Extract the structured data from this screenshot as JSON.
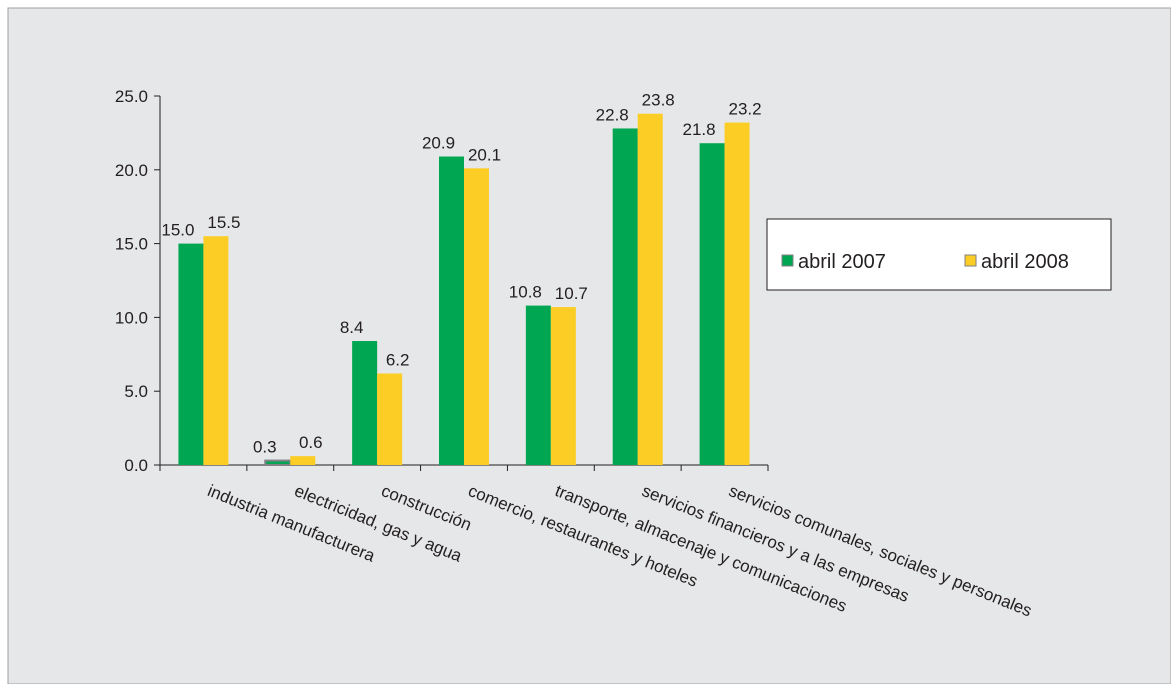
{
  "chart_data": {
    "type": "bar",
    "categories": [
      "industria manufacturera",
      "electricidad, gas y agua",
      "construcción",
      "comercio, restaurantes y hoteles",
      "transporte, almacenaje y comunicaciones",
      "servicios financieros y a las empresas",
      "servicios comunales, sociales y personales"
    ],
    "series": [
      {
        "name": "abril 2007",
        "values": [
          15.0,
          0.3,
          8.4,
          20.9,
          10.8,
          22.8,
          21.8
        ],
        "labels": [
          "15.0",
          "0.3",
          "8.4",
          "20.9",
          "10.8",
          "22.8",
          "21.8"
        ],
        "color": "#00a651"
      },
      {
        "name": "abril 2008",
        "values": [
          15.5,
          0.6,
          6.2,
          20.1,
          10.7,
          23.8,
          23.2
        ],
        "labels": [
          "15.5",
          "0.6",
          "6.2",
          "20.1",
          "10.7",
          "23.8",
          "23.2"
        ],
        "color": "#fcce25"
      }
    ],
    "yticks": [
      "0.0",
      "5.0",
      "10.0",
      "15.0",
      "20.0",
      "25.0"
    ],
    "ylim": [
      0,
      25
    ],
    "grid": false,
    "legend_position": "right",
    "background": "#e6e7e8"
  }
}
